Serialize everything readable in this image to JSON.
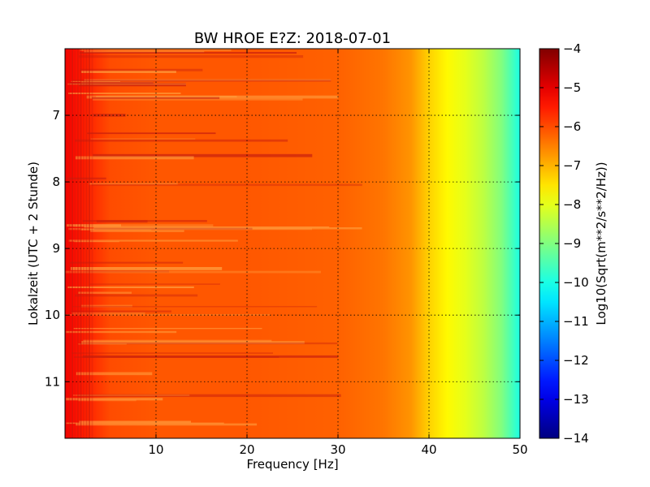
{
  "chart_data": {
    "type": "heatmap",
    "title": "BW HROE E?Z: 2018-07-01",
    "xlabel": "Frequency [Hz]",
    "ylabel": "Lokalzeit (UTC + 2 Stunde)",
    "colorbar_label": "Log10(Sqrt(m**2/s**2/Hz))",
    "xlim": [
      0,
      50
    ],
    "ylim": [
      6.0,
      11.85
    ],
    "y_inverted": true,
    "x_ticks": [
      10,
      20,
      30,
      40,
      50
    ],
    "y_ticks": [
      7,
      8,
      9,
      10,
      11
    ],
    "colorbar_range": [
      -14,
      -4
    ],
    "colorbar_ticks": [
      -4,
      -5,
      -6,
      -7,
      -8,
      -9,
      -10,
      -11,
      -12,
      -13,
      -14
    ],
    "colormap": "jet",
    "grid": true,
    "profile_hz": [
      0,
      2,
      5,
      10,
      20,
      30,
      35,
      38,
      40,
      42,
      44,
      46,
      48,
      50
    ],
    "profile_log10": [
      -5.2,
      -5.5,
      -6.0,
      -6.1,
      -6.1,
      -6.2,
      -6.4,
      -6.7,
      -7.3,
      -7.7,
      -8.0,
      -8.4,
      -9.0,
      -10.0
    ],
    "colors": {
      "background": "#ffffff",
      "grid": "#000000"
    }
  }
}
